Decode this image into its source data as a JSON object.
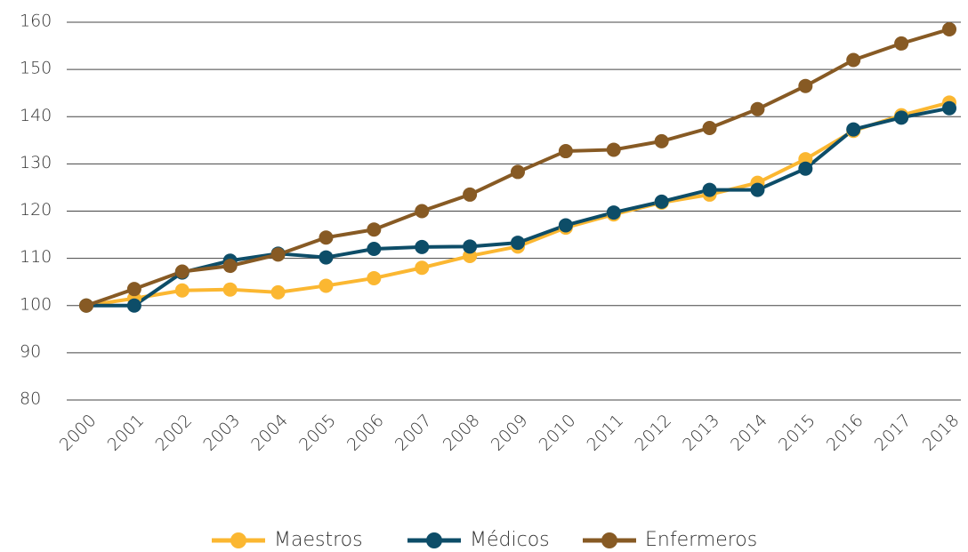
{
  "chart_data": {
    "type": "line",
    "categories": [
      "2000",
      "2001",
      "2002",
      "2003",
      "2004",
      "2005",
      "2006",
      "2007",
      "2008",
      "2009",
      "2010",
      "2011",
      "2012",
      "2013",
      "2014",
      "2015",
      "2016",
      "2017",
      "2018"
    ],
    "series": [
      {
        "name": "Maestros",
        "color": "#fbb731",
        "values": [
          100,
          101.5,
          103.2,
          103.4,
          102.8,
          104.2,
          105.8,
          108,
          110.5,
          112.5,
          116.5,
          119.3,
          121.8,
          123.5,
          126,
          131,
          137,
          140.3,
          143
        ]
      },
      {
        "name": "Médicos",
        "color": "#0d4d68",
        "values": [
          100,
          100,
          107,
          109.5,
          111,
          110.2,
          112,
          112.4,
          112.5,
          113.3,
          117,
          119.7,
          122,
          124.5,
          124.5,
          129,
          137.3,
          139.8,
          141.8
        ]
      },
      {
        "name": "Enfermeros",
        "color": "#875a24",
        "values": [
          100,
          103.5,
          107.2,
          108.4,
          110.8,
          114.4,
          116.1,
          120,
          123.5,
          128.3,
          132.7,
          133,
          134.8,
          137.6,
          141.6,
          146.5,
          152,
          155.5,
          158.5
        ]
      }
    ],
    "ylim": [
      80,
      160
    ],
    "yticks": [
      80,
      90,
      100,
      110,
      120,
      130,
      140,
      150,
      160
    ],
    "grid": true,
    "legend": "bottom"
  }
}
